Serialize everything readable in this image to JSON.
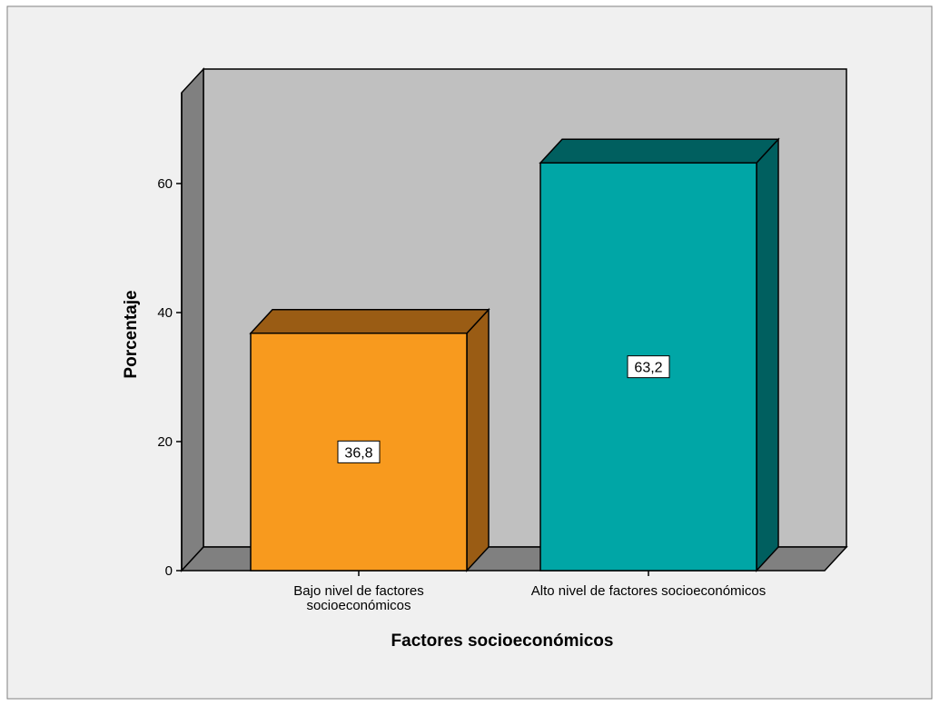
{
  "chart_data": {
    "type": "bar",
    "title": "",
    "xlabel": "Factores socioeconómicos",
    "ylabel": "Porcentaje",
    "categories": [
      [
        "Bajo nivel de factores",
        "socioeconómicos"
      ],
      [
        "Alto nivel de factores socioeconómicos"
      ]
    ],
    "values": [
      36.8,
      63.2
    ],
    "value_labels": [
      "36,8",
      "63,2"
    ],
    "yticks": [
      "0",
      "20",
      "40",
      "60"
    ],
    "ytick_values": [
      0,
      20,
      40,
      60
    ],
    "ylim": [
      0,
      75
    ],
    "grid": false,
    "three_d": true,
    "colors": {
      "bars": [
        "#F89A1E",
        "#00A6A6"
      ],
      "bar_sides": [
        "#9A5C14",
        "#005F5F"
      ],
      "bar_tops": [
        "#9A5C14",
        "#005F5F"
      ],
      "back_wall": "#C0C0C0",
      "side_wall": "#808080",
      "floor": "#808080",
      "background": "#F0F0F0"
    }
  }
}
